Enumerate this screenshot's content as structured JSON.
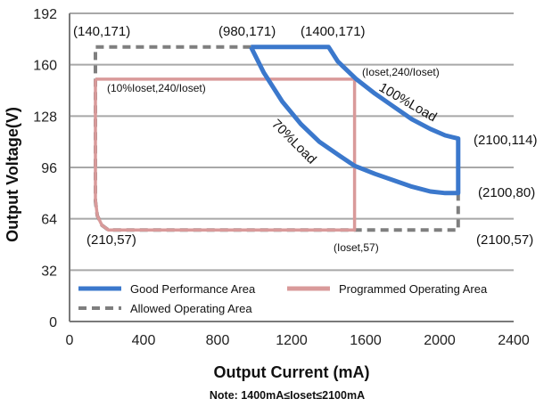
{
  "chart_data": {
    "type": "line",
    "xlabel": "Output Current (mA)",
    "ylabel": "Output Voltage(V)",
    "xlim": [
      0,
      2400
    ],
    "ylim": [
      0,
      192
    ],
    "xticks": [
      "0",
      "400",
      "800",
      "1200",
      "1600",
      "2000",
      "2400"
    ],
    "yticks": [
      "0",
      "32",
      "64",
      "96",
      "128",
      "160",
      "192"
    ],
    "grid": "horizontal",
    "legend_position": "bottom-inside",
    "note": "Note:  1400mA≤Ioset≤2100mA",
    "series": [
      {
        "name": "Good Performance Area",
        "color": "#3b78cc",
        "style": "solid",
        "points": [
          [
            980,
            171
          ],
          [
            1400,
            171
          ],
          [
            1450,
            162
          ],
          [
            1550,
            151
          ],
          [
            1650,
            142
          ],
          [
            1750,
            134
          ],
          [
            1850,
            126
          ],
          [
            1950,
            120
          ],
          [
            2030,
            116
          ],
          [
            2100,
            114
          ],
          [
            2100,
            80
          ],
          [
            2030,
            80
          ],
          [
            1950,
            81
          ],
          [
            1850,
            84
          ],
          [
            1750,
            88
          ],
          [
            1650,
            92
          ],
          [
            1540,
            97
          ],
          [
            1450,
            104
          ],
          [
            1350,
            112
          ],
          [
            1250,
            123
          ],
          [
            1150,
            137
          ],
          [
            1050,
            155
          ],
          [
            980,
            171
          ]
        ]
      },
      {
        "name": "Programmed Operating Area",
        "color": "#d99a9a",
        "style": "solid",
        "points": [
          [
            140,
            151
          ],
          [
            1540,
            151
          ],
          [
            1540,
            57
          ],
          [
            210,
            57
          ],
          [
            175,
            60
          ],
          [
            150,
            66
          ],
          [
            140,
            76
          ],
          [
            140,
            151
          ]
        ]
      },
      {
        "name": "Allowed Operating Area",
        "color": "#7f7f7f",
        "style": "dashed",
        "points": [
          [
            980,
            171
          ],
          [
            140,
            171
          ],
          [
            140,
            75
          ],
          [
            150,
            66
          ],
          [
            175,
            60
          ],
          [
            210,
            57
          ],
          [
            2100,
            57
          ],
          [
            2100,
            80
          ]
        ]
      }
    ],
    "annotations": [
      {
        "text": "(140,171)",
        "size": "large"
      },
      {
        "text": "(980,171)",
        "size": "large"
      },
      {
        "text": "(1400,171)",
        "size": "large"
      },
      {
        "text": "(Ioset,240/Ioset)",
        "size": "small"
      },
      {
        "text": "(10%Ioset,240/Ioset)",
        "size": "small"
      },
      {
        "text": "(2100,114)",
        "size": "large"
      },
      {
        "text": "(2100,80)",
        "size": "large"
      },
      {
        "text": "(2100,57)",
        "size": "large"
      },
      {
        "text": "(210,57)",
        "size": "large"
      },
      {
        "text": "(Ioset,57)",
        "size": "small"
      }
    ],
    "curve_labels": {
      "full_load": "100%Load",
      "partial_load": "70%Load"
    }
  }
}
